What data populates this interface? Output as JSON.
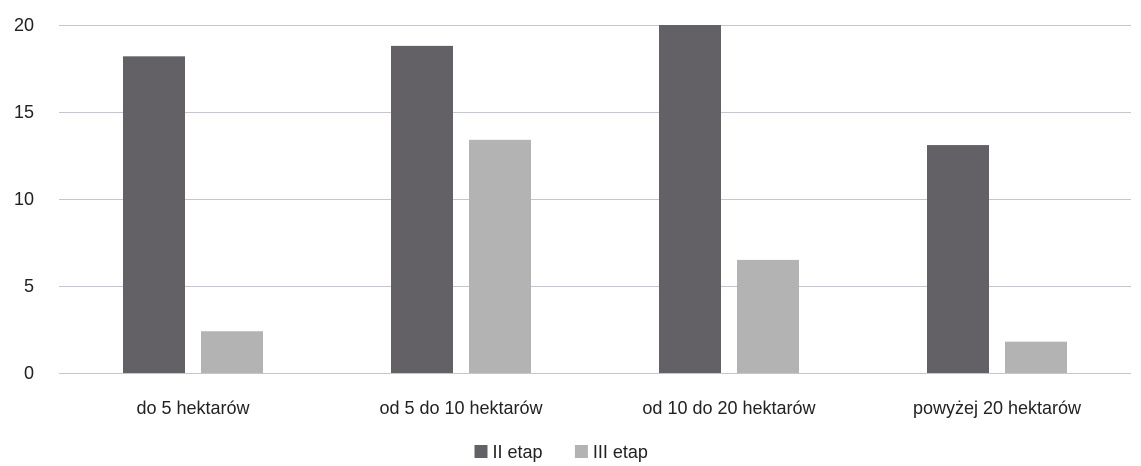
{
  "chart_data": {
    "type": "bar",
    "title": "",
    "xlabel": "",
    "ylabel": "",
    "categories": [
      "do 5 hektarów",
      "od 5 do 10 hektarów",
      "od 10 do 20 hektarów",
      "powyżej 20 hektarów"
    ],
    "series": [
      {
        "name": "II etap",
        "values": [
          18.2,
          18.8,
          20.0,
          13.1
        ],
        "color": "#636166"
      },
      {
        "name": "III etap",
        "values": [
          2.4,
          13.4,
          6.5,
          1.8
        ],
        "color": "#b3b3b3"
      }
    ],
    "ylim": [
      0,
      20
    ],
    "yticks": [
      0,
      5,
      10,
      15,
      20
    ],
    "grid": true,
    "grid_color": "#c9c3d6",
    "legend": "bottom-center"
  }
}
